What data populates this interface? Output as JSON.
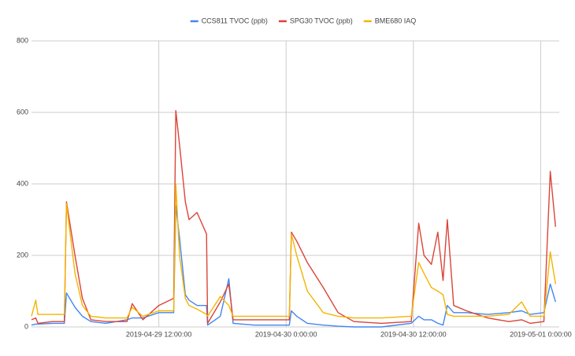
{
  "chart_data": {
    "type": "line",
    "x": [
      "2019-04-29 0:00:00",
      "2019-04-29 0:24:00",
      "2019-04-29 0:36:00",
      "2019-04-29 2:00:00",
      "2019-04-29 3:06:00",
      "2019-04-29 3:18:00",
      "2019-04-29 4:06:00",
      "2019-04-29 4:48:00",
      "2019-04-29 5:36:00",
      "2019-04-29 7:00:00",
      "2019-04-29 9:00:00",
      "2019-04-29 9:30:00",
      "2019-04-29 10:30:00",
      "2019-04-29 12:00:00",
      "2019-04-29 13:24:00",
      "2019-04-29 13:36:00",
      "2019-04-29 13:57:00",
      "2019-04-29 14:30:00",
      "2019-04-29 14:51:00",
      "2019-04-29 15:36:00",
      "2019-04-29 16:30:00",
      "2019-04-29 16:36:00",
      "2019-04-29 17:48:00",
      "2019-04-29 18:36:00",
      "2019-04-29 19:00:00",
      "2019-04-29 21:00:00",
      "2019-04-30 0:18:00",
      "2019-04-30 0:30:00",
      "2019-04-30 1:00:00",
      "2019-04-30 2:00:00",
      "2019-04-30 3:30:00",
      "2019-04-30 4:54:00",
      "2019-04-30 6:24:00",
      "2019-04-30 9:00:00",
      "2019-04-30 11:48:00",
      "2019-04-30 12:30:00",
      "2019-04-30 13:00:00",
      "2019-04-30 13:42:00",
      "2019-04-30 14:18:00",
      "2019-04-30 14:48:00",
      "2019-04-30 15:12:00",
      "2019-04-30 15:48:00",
      "2019-04-30 17:00:00",
      "2019-04-30 19:00:00",
      "2019-04-30 21:00:00",
      "2019-04-30 22:12:00",
      "2019-04-30 23:00:00",
      "2019-05-01 0:18:00",
      "2019-05-01 0:54:00",
      "2019-05-01 1:24:00"
    ],
    "series": [
      {
        "name": "CCS811 TVOC (ppb)",
        "color": "#4285f4",
        "values": [
          5,
          8,
          8,
          10,
          10,
          95,
          55,
          30,
          15,
          10,
          20,
          25,
          25,
          40,
          40,
          340,
          250,
          90,
          75,
          60,
          60,
          5,
          30,
          135,
          10,
          5,
          5,
          45,
          30,
          10,
          5,
          2,
          0,
          0,
          10,
          30,
          20,
          20,
          10,
          5,
          60,
          40,
          40,
          35,
          40,
          45,
          35,
          40,
          120,
          70
        ]
      },
      {
        "name": "SPG30 TVOC (ppb)",
        "color": "#db4437",
        "values": [
          20,
          25,
          10,
          15,
          15,
          350,
          200,
          80,
          20,
          15,
          15,
          65,
          20,
          60,
          80,
          605,
          510,
          350,
          300,
          320,
          260,
          10,
          70,
          120,
          20,
          20,
          20,
          265,
          240,
          180,
          110,
          40,
          15,
          10,
          15,
          290,
          200,
          175,
          265,
          130,
          300,
          60,
          45,
          25,
          15,
          20,
          10,
          15,
          435,
          280
        ]
      },
      {
        "name": "BME680 IAQ",
        "color": "#f4b400",
        "values": [
          30,
          75,
          35,
          35,
          35,
          345,
          150,
          60,
          30,
          25,
          25,
          55,
          30,
          45,
          45,
          400,
          200,
          80,
          60,
          50,
          35,
          30,
          85,
          60,
          30,
          30,
          30,
          260,
          200,
          100,
          40,
          30,
          25,
          25,
          30,
          180,
          150,
          110,
          100,
          90,
          35,
          30,
          30,
          30,
          35,
          70,
          30,
          30,
          210,
          120
        ]
      }
    ],
    "xlim": [
      "2019-04-29 0:00:00",
      "2019-05-01 1:45:00"
    ],
    "xticks": [
      "2019-04-29 12:00:00",
      "2019-04-30 0:00:00",
      "2019-04-30 12:00:00",
      "2019-05-01 0:00:00"
    ],
    "ylim": [
      0,
      800
    ],
    "yticks": [
      0,
      200,
      400,
      600,
      800
    ],
    "grid": true,
    "legend": "top"
  }
}
